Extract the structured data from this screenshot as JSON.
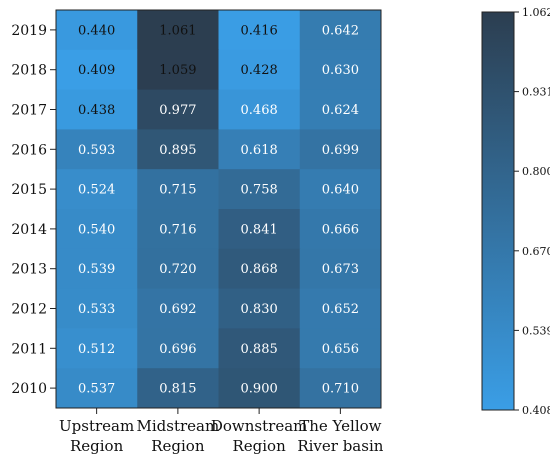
{
  "chart_data": {
    "type": "heatmap",
    "title": "",
    "xlabel": "",
    "ylabel": "",
    "x_categories": [
      "Upstream\nRegion",
      "Midstream\nRegion",
      "Downstream\nRegion",
      "The Yellow\nRiver basin"
    ],
    "y_categories": [
      "2019",
      "2018",
      "2017",
      "2016",
      "2015",
      "2014",
      "2013",
      "2012",
      "2011",
      "2010"
    ],
    "values": [
      [
        0.44,
        1.061,
        0.416,
        0.642
      ],
      [
        0.409,
        1.059,
        0.428,
        0.63
      ],
      [
        0.438,
        0.977,
        0.468,
        0.624
      ],
      [
        0.593,
        0.895,
        0.618,
        0.699
      ],
      [
        0.524,
        0.715,
        0.758,
        0.64
      ],
      [
        0.54,
        0.716,
        0.841,
        0.666
      ],
      [
        0.539,
        0.72,
        0.868,
        0.673
      ],
      [
        0.533,
        0.692,
        0.83,
        0.652
      ],
      [
        0.512,
        0.696,
        0.885,
        0.656
      ],
      [
        0.537,
        0.815,
        0.9,
        0.71
      ]
    ],
    "value_labels": [
      [
        "0.440",
        "1.061",
        "0.416",
        "0.642"
      ],
      [
        "0.409",
        "1.059",
        "0.428",
        "0.630"
      ],
      [
        "0.438",
        "0.977",
        "0.468",
        "0.624"
      ],
      [
        "0.593",
        "0.895",
        "0.618",
        "0.699"
      ],
      [
        "0.524",
        "0.715",
        "0.758",
        "0.640"
      ],
      [
        "0.540",
        "0.716",
        "0.841",
        "0.666"
      ],
      [
        "0.539",
        "0.720",
        "0.868",
        "0.673"
      ],
      [
        "0.533",
        "0.692",
        "0.830",
        "0.652"
      ],
      [
        "0.512",
        "0.696",
        "0.885",
        "0.656"
      ],
      [
        "0.537",
        "0.815",
        "0.900",
        "0.710"
      ]
    ],
    "colorbar": {
      "min": 0.408,
      "max": 1.062,
      "ticks": [
        "1.062",
        "0.931",
        "0.800",
        "0.670",
        "0.539",
        "0.408"
      ],
      "low_color": "#3a9ee6",
      "high_color": "#2c3e50"
    },
    "grid": false,
    "legend": "colorbar-right"
  }
}
